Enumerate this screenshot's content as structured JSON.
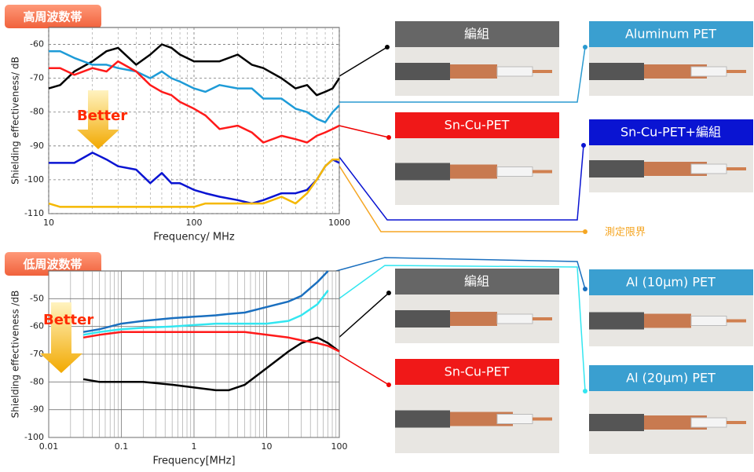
{
  "chart_data": [
    {
      "type": "line",
      "title": "高周波数帯",
      "annotation": "Better",
      "x_label": "Frequency/ MHz",
      "y_label": "Shielding effectiveness/ dB",
      "log_x": true,
      "grid": true,
      "x": [
        10,
        12,
        15,
        20,
        25,
        30,
        40,
        50,
        60,
        70,
        80,
        100,
        120,
        150,
        200,
        250,
        300,
        400,
        500,
        600,
        700,
        800,
        900,
        1000
      ],
      "xlim": [
        10,
        1000
      ],
      "xticks": [
        10,
        100,
        1000
      ],
      "ylim": [
        -110,
        -55
      ],
      "yticks": [
        -60,
        -70,
        -80,
        -90,
        -100,
        -110
      ],
      "series": [
        {
          "name": "編組",
          "color": "#000000",
          "values": [
            -73,
            -72,
            -68,
            -65,
            -62,
            -61,
            -66,
            -63,
            -60,
            -61,
            -63,
            -65,
            -65,
            -65,
            -63,
            -66,
            -67,
            -70,
            -73,
            -72,
            -75,
            -74,
            -73,
            -70
          ]
        },
        {
          "name": "Aluminum PET",
          "color": "#1e9bd7",
          "values": [
            -62,
            -62,
            -64,
            -66,
            -66,
            -67,
            -68,
            -70,
            -68,
            -70,
            -71,
            -73,
            -74,
            -72,
            -73,
            -73,
            -76,
            -76,
            -79,
            -80,
            -82,
            -83,
            -80,
            -78
          ]
        },
        {
          "name": "Sn-Cu-PET",
          "color": "#ff1a1a",
          "values": [
            -67,
            -67,
            -69,
            -67,
            -68,
            -65,
            -68,
            -72,
            -74,
            -75,
            -77,
            -79,
            -81,
            -85,
            -84,
            -86,
            -89,
            -87,
            -88,
            -89,
            -87,
            -86,
            -85,
            -84
          ]
        },
        {
          "name": "Sn-Cu-PET+編組",
          "color": "#0a14d2",
          "values": [
            -95,
            -95,
            -95,
            -92,
            -94,
            -96,
            -97,
            -101,
            -98,
            -101,
            -101,
            -103,
            -104,
            -105,
            -106,
            -107,
            -106,
            -104,
            -104,
            -103,
            -100,
            -96,
            -94,
            -95
          ]
        },
        {
          "name": "測定限界",
          "color": "#f5b800",
          "values": [
            -107,
            -108,
            -108,
            -108,
            -108,
            -108,
            -108,
            -108,
            -108,
            -108,
            -108,
            -108,
            -107,
            -107,
            -107,
            -107,
            -107,
            -105,
            -107,
            -104,
            -100,
            -96,
            -94,
            -94
          ]
        }
      ]
    },
    {
      "type": "line",
      "title": "低周波数帯",
      "annotation": "Better",
      "x_label": "Frequency[MHz]",
      "y_label": "Shielding effectiveness /dB",
      "log_x": true,
      "grid": true,
      "x": [
        0.03,
        0.05,
        0.1,
        0.2,
        0.5,
        1,
        2,
        3,
        5,
        10,
        20,
        30,
        50,
        70,
        100
      ],
      "xlim": [
        0.01,
        100
      ],
      "xticks": [
        0.01,
        0.1,
        1,
        10,
        100
      ],
      "ylim": [
        -100,
        -40
      ],
      "yticks": [
        -50,
        -60,
        -70,
        -80,
        -90,
        -100
      ],
      "series": [
        {
          "name": "編組",
          "color": "#000000",
          "values": [
            -79,
            -80,
            -80,
            -80,
            -81,
            -82,
            -83,
            -83,
            -81,
            -75,
            -69,
            -66,
            -64,
            -66,
            -69
          ]
        },
        {
          "name": "Sn-Cu-PET",
          "color": "#ff1a1a",
          "values": [
            -64,
            -63,
            -62,
            -62,
            -62,
            -62,
            -62,
            -62,
            -62,
            -63,
            -64,
            -65,
            -66,
            -67,
            -69
          ]
        },
        {
          "name": "Al (10µm) PET",
          "color": "#1a6fbf",
          "values": [
            -62,
            -61,
            -59,
            -58,
            -57,
            -56.5,
            -56,
            -55.5,
            -55,
            -53,
            -51,
            -49,
            -44,
            -40,
            null
          ]
        },
        {
          "name": "Al (20µm) PET",
          "color": "#33e6f0",
          "values": [
            -63,
            -62,
            -61,
            -60.5,
            -60,
            -59.5,
            -59,
            -59,
            -59,
            -59,
            -58,
            -56,
            -52,
            -47,
            null
          ]
        }
      ]
    }
  ]
}
